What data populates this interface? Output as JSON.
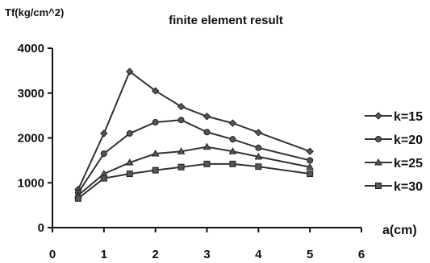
{
  "chart_data": {
    "type": "line",
    "title": "finite element result",
    "ylabel": "Tf(kg/cm^2)",
    "xlabel": "a(cm)",
    "xlim": [
      0,
      6
    ],
    "ylim": [
      0,
      4000
    ],
    "x_ticks": [
      "0",
      "1",
      "2",
      "3",
      "4",
      "5",
      "6"
    ],
    "y_ticks": [
      "0",
      "1000",
      "2000",
      "3000",
      "4000"
    ],
    "grid": false,
    "legend_position": "right",
    "x": [
      0.5,
      1,
      1.5,
      2,
      2.5,
      3,
      3.5,
      4,
      5
    ],
    "series": [
      {
        "name": "k=15",
        "marker": "diamond",
        "values": [
          850,
          2100,
          3480,
          3050,
          2700,
          2480,
          2330,
          2120,
          1700
        ]
      },
      {
        "name": "k=20",
        "marker": "circle",
        "values": [
          780,
          1650,
          2100,
          2350,
          2400,
          2130,
          1970,
          1780,
          1500
        ]
      },
      {
        "name": "k=25",
        "marker": "triangle",
        "values": [
          720,
          1200,
          1450,
          1650,
          1700,
          1800,
          1700,
          1580,
          1350
        ]
      },
      {
        "name": "k=30",
        "marker": "square",
        "values": [
          650,
          1100,
          1200,
          1280,
          1350,
          1420,
          1420,
          1360,
          1200
        ]
      }
    ]
  }
}
